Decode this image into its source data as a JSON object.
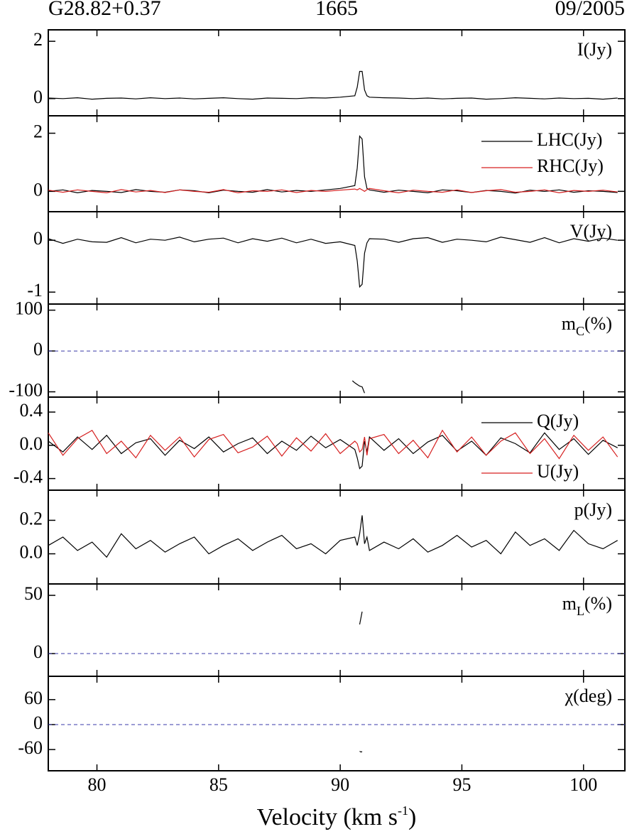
{
  "titles": [
    "G28.82+0.37",
    "1665",
    "09/2005"
  ],
  "chart_data": [
    {
      "type": "line",
      "label": [
        "I(Jy)"
      ],
      "xlim": [
        78,
        101.7
      ],
      "ylim": [
        -0.6,
        2.4
      ],
      "yticks": [
        0,
        2
      ],
      "x": [
        78.0,
        78.6,
        79.2,
        79.8,
        80.4,
        81.0,
        81.6,
        82.2,
        82.8,
        83.4,
        84.0,
        84.6,
        85.2,
        85.8,
        86.4,
        87.0,
        87.6,
        88.2,
        88.8,
        89.4,
        90.0,
        90.6,
        90.7,
        90.8,
        90.9,
        91.0,
        91.1,
        91.2,
        91.8,
        92.4,
        93.0,
        93.6,
        94.2,
        94.8,
        95.4,
        96.0,
        96.6,
        97.2,
        97.8,
        98.4,
        99.0,
        99.6,
        100.2,
        100.8,
        101.4
      ],
      "series": [
        {
          "color": "#000000",
          "values": [
            0.02,
            0.0,
            0.03,
            -0.02,
            0.01,
            0.02,
            -0.01,
            0.03,
            0.0,
            0.02,
            -0.01,
            0.01,
            0.03,
            0.0,
            -0.02,
            0.02,
            0.01,
            0.0,
            0.03,
            0.02,
            0.05,
            0.1,
            0.4,
            0.95,
            0.95,
            0.3,
            0.1,
            0.05,
            0.03,
            0.02,
            0.0,
            0.02,
            -0.01,
            0.01,
            0.02,
            -0.02,
            0.0,
            0.03,
            0.01,
            -0.01,
            0.02,
            0.0,
            0.01,
            -0.02,
            0.02
          ]
        }
      ]
    },
    {
      "type": "line",
      "xlim": [
        78,
        101.7
      ],
      "ylim": [
        -0.7,
        2.6
      ],
      "yticks": [
        0,
        2
      ],
      "x": [
        78.0,
        78.6,
        79.2,
        79.8,
        80.4,
        81.0,
        81.6,
        82.2,
        82.8,
        83.4,
        84.0,
        84.6,
        85.2,
        85.8,
        86.4,
        87.0,
        87.6,
        88.2,
        88.8,
        89.4,
        90.0,
        90.6,
        90.7,
        90.8,
        90.9,
        91.0,
        91.1,
        91.2,
        91.8,
        92.4,
        93.0,
        93.6,
        94.2,
        94.8,
        95.4,
        96.0,
        96.6,
        97.2,
        97.8,
        98.4,
        99.0,
        99.6,
        100.2,
        100.8,
        101.4
      ],
      "series": [
        {
          "name": "LHC(Jy)",
          "color": "#000000",
          "legend": "upper right",
          "values": [
            0.0,
            0.05,
            -0.05,
            0.03,
            0.0,
            -0.04,
            0.06,
            0.0,
            -0.03,
            0.05,
            0.02,
            -0.05,
            0.04,
            0.0,
            -0.03,
            0.06,
            -0.02,
            0.03,
            0.0,
            0.05,
            0.1,
            0.2,
            0.8,
            1.9,
            1.8,
            0.5,
            0.1,
            0.05,
            -0.03,
            0.04,
            0.0,
            -0.05,
            0.05,
            0.02,
            -0.04,
            0.03,
            0.0,
            -0.06,
            0.04,
            0.0,
            0.05,
            -0.03,
            0.02,
            0.0,
            -0.04
          ]
        },
        {
          "name": "RHC(Jy)",
          "color": "#d62020",
          "legend": "upper right",
          "values": [
            0.04,
            -0.03,
            0.05,
            0.0,
            -0.05,
            0.06,
            -0.02,
            0.03,
            -0.04,
            0.05,
            0.0,
            -0.03,
            0.06,
            -0.05,
            0.02,
            0.0,
            0.05,
            -0.04,
            0.03,
            0.0,
            0.04,
            0.08,
            0.05,
            0.1,
            0.05,
            0.0,
            0.06,
            0.1,
            0.02,
            -0.05,
            0.04,
            0.0,
            -0.03,
            0.05,
            -0.04,
            0.02,
            0.06,
            -0.03,
            0.0,
            0.05,
            -0.05,
            0.03,
            0.0,
            0.04,
            -0.02
          ]
        }
      ]
    },
    {
      "type": "line",
      "label": [
        "V(Jy)"
      ],
      "xlim": [
        78,
        101.7
      ],
      "ylim": [
        -1.23,
        0.55
      ],
      "yticks": [
        -1,
        0
      ],
      "x": [
        78.0,
        78.6,
        79.2,
        79.8,
        80.4,
        81.0,
        81.6,
        82.2,
        82.8,
        83.4,
        84.0,
        84.6,
        85.2,
        85.8,
        86.4,
        87.0,
        87.6,
        88.2,
        88.8,
        89.4,
        90.0,
        90.6,
        90.7,
        90.8,
        90.9,
        91.0,
        91.1,
        91.2,
        91.8,
        92.4,
        93.0,
        93.6,
        94.2,
        94.8,
        95.4,
        96.0,
        96.6,
        97.2,
        97.8,
        98.4,
        99.0,
        99.6,
        100.2,
        100.8,
        101.4
      ],
      "series": [
        {
          "color": "#000000",
          "values": [
            0.03,
            -0.06,
            0.02,
            -0.03,
            -0.04,
            0.05,
            -0.05,
            0.02,
            0.0,
            0.06,
            -0.03,
            0.02,
            0.04,
            -0.05,
            0.03,
            -0.02,
            0.04,
            -0.05,
            0.02,
            -0.06,
            -0.03,
            -0.1,
            -0.4,
            -0.9,
            -0.85,
            -0.25,
            -0.05,
            0.03,
            0.02,
            -0.04,
            0.03,
            0.05,
            -0.04,
            0.02,
            0.0,
            -0.03,
            0.06,
            0.01,
            -0.04,
            0.05,
            -0.05,
            0.03,
            -0.02,
            0.04,
            0.0
          ]
        }
      ]
    },
    {
      "type": "line",
      "label": [
        "m",
        "C",
        "(%)"
      ],
      "xlim": [
        78,
        101.7
      ],
      "ylim": [
        -113,
        115
      ],
      "yticks": [
        -100,
        0,
        100
      ],
      "hline": 0,
      "hline_color": "#3a3aa8",
      "x": [
        90.5,
        90.6,
        90.7,
        90.8,
        90.9,
        91.0
      ],
      "series": [
        {
          "color": "#000000",
          "values": [
            -73,
            -78,
            -82,
            -86,
            -88,
            -103
          ]
        }
      ]
    },
    {
      "type": "line",
      "xlim": [
        78,
        101.7
      ],
      "ylim": [
        -0.54,
        0.58
      ],
      "yticks": [
        -0.4,
        {
          "value": 0,
          "label": "0.0"
        },
        0.4
      ],
      "x": [
        78.0,
        78.6,
        79.2,
        79.8,
        80.4,
        81.0,
        81.6,
        82.2,
        82.8,
        83.4,
        84.0,
        84.6,
        85.2,
        85.8,
        86.4,
        87.0,
        87.6,
        88.2,
        88.8,
        89.4,
        90.0,
        90.6,
        90.7,
        90.8,
        90.9,
        91.0,
        91.1,
        91.2,
        91.8,
        92.4,
        93.0,
        93.6,
        94.2,
        94.8,
        95.4,
        96.0,
        96.6,
        97.2,
        97.8,
        98.4,
        99.0,
        99.6,
        100.2,
        100.8,
        101.4
      ],
      "series": [
        {
          "name": "Q(Jy)",
          "color": "#000000",
          "legend": "upper right",
          "values": [
            0.05,
            -0.08,
            0.1,
            -0.05,
            0.12,
            -0.1,
            0.03,
            0.08,
            -0.12,
            0.06,
            -0.04,
            0.1,
            -0.08,
            0.02,
            0.09,
            -0.1,
            0.05,
            -0.06,
            0.11,
            -0.03,
            0.07,
            -0.05,
            -0.15,
            -0.28,
            -0.25,
            0.05,
            -0.08,
            0.1,
            -0.06,
            0.08,
            -0.1,
            0.04,
            0.12,
            -0.07,
            0.05,
            -0.12,
            0.09,
            0.02,
            -0.09,
            0.15,
            -0.05,
            0.08,
            -0.11,
            0.06,
            -0.03
          ]
        },
        {
          "name": "U(Jy)",
          "color": "#d62020",
          "legend": "lower right",
          "values": [
            0.15,
            -0.12,
            0.08,
            0.18,
            -0.1,
            0.05,
            -0.15,
            0.12,
            -0.06,
            0.1,
            -0.14,
            0.07,
            0.13,
            -0.09,
            -0.02,
            0.11,
            -0.13,
            0.09,
            -0.07,
            0.14,
            -0.1,
            0.05,
            0.02,
            -0.08,
            -0.05,
            0.1,
            -0.12,
            0.08,
            0.13,
            -0.1,
            0.06,
            -0.15,
            0.18,
            -0.08,
            0.1,
            -0.12,
            0.05,
            0.15,
            -0.1,
            0.08,
            -0.16,
            0.12,
            -0.06,
            0.1,
            -0.14
          ]
        }
      ]
    },
    {
      "type": "line",
      "label": [
        "p(Jy)"
      ],
      "xlim": [
        78,
        101.7
      ],
      "ylim": [
        -0.18,
        0.38
      ],
      "yticks": [
        {
          "value": 0,
          "label": "0.0"
        },
        0.2
      ],
      "x": [
        78.0,
        78.6,
        79.2,
        79.8,
        80.4,
        81.0,
        81.6,
        82.2,
        82.8,
        83.4,
        84.0,
        84.6,
        85.2,
        85.8,
        86.4,
        87.0,
        87.6,
        88.2,
        88.8,
        89.4,
        90.0,
        90.6,
        90.7,
        90.8,
        90.9,
        91.0,
        91.1,
        91.2,
        91.8,
        92.4,
        93.0,
        93.6,
        94.2,
        94.8,
        95.4,
        96.0,
        96.6,
        97.2,
        97.8,
        98.4,
        99.0,
        99.6,
        100.2,
        100.8,
        101.4
      ],
      "series": [
        {
          "color": "#000000",
          "values": [
            0.05,
            0.1,
            0.02,
            0.07,
            -0.02,
            0.12,
            0.03,
            0.08,
            0.01,
            0.06,
            0.1,
            0.0,
            0.05,
            0.09,
            0.02,
            0.07,
            0.11,
            0.03,
            0.06,
            0.0,
            0.08,
            0.1,
            0.05,
            0.12,
            0.23,
            0.06,
            0.1,
            0.02,
            0.07,
            0.03,
            0.09,
            0.01,
            0.05,
            0.11,
            0.04,
            0.08,
            0.0,
            0.13,
            0.05,
            0.09,
            0.02,
            0.14,
            0.06,
            0.03,
            0.08
          ]
        }
      ]
    },
    {
      "type": "line",
      "label": [
        "m",
        "L",
        "(%)"
      ],
      "xlim": [
        78,
        101.7
      ],
      "ylim": [
        -19.5,
        59.8
      ],
      "yticks": [
        0,
        50
      ],
      "hline": 0,
      "hline_color": "#3a3aa8",
      "x": [
        90.8,
        90.9
      ],
      "series": [
        {
          "color": "#000000",
          "values": [
            25,
            36
          ]
        }
      ]
    },
    {
      "type": "line",
      "label": [
        "χ(deg)"
      ],
      "xlim": [
        78,
        101.7
      ],
      "ylim": [
        -111,
        116
      ],
      "yticks": [
        -60,
        0,
        60
      ],
      "hline": 0,
      "hline_color": "#3a3aa8",
      "xticks": [
        80,
        85,
        90,
        95,
        100
      ],
      "xlabel": [
        "Velocity (km s",
        "-1",
        ")"
      ],
      "x": [
        90.8,
        90.85,
        90.9
      ],
      "series": [
        {
          "color": "#000000",
          "values": [
            -64,
            -66,
            -65
          ]
        }
      ]
    }
  ]
}
